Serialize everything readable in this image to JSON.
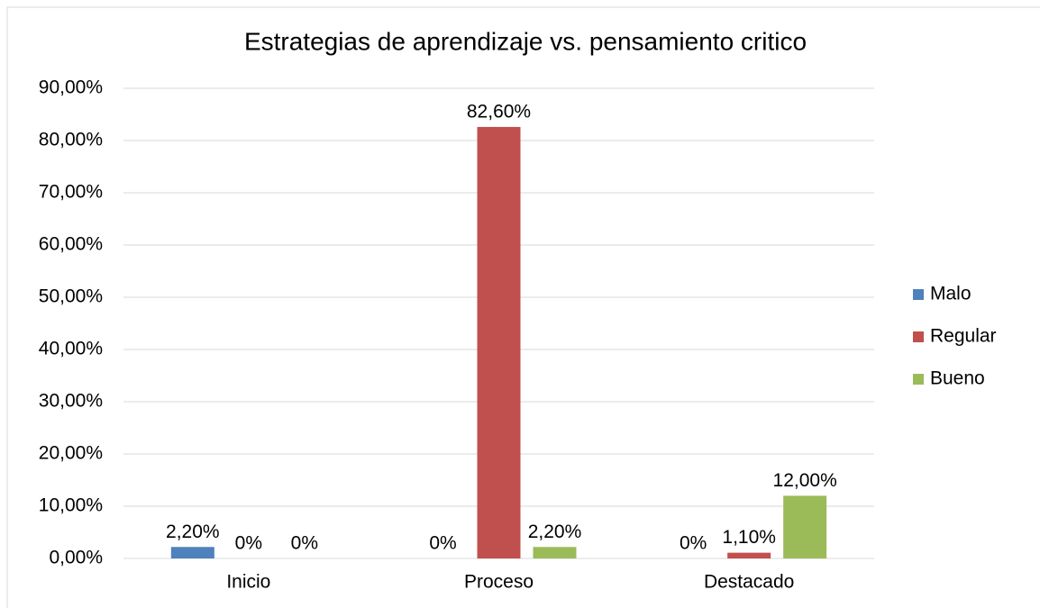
{
  "chart_data": {
    "type": "bar",
    "title": "Estrategias de aprendizaje vs. pensamiento critico",
    "categories": [
      "Inicio",
      "Proceso",
      "Destacado"
    ],
    "series": [
      {
        "name": "Malo",
        "color": "#4f81bd",
        "values": [
          2.2,
          0,
          0
        ],
        "value_labels": [
          "2,20%",
          "0%",
          "0%"
        ]
      },
      {
        "name": "Regular",
        "color": "#c0504d",
        "values": [
          0,
          82.6,
          1.1
        ],
        "value_labels": [
          "0%",
          "82,60%",
          "1,10%"
        ]
      },
      {
        "name": "Bueno",
        "color": "#9bbb59",
        "values": [
          0,
          2.2,
          12.0
        ],
        "value_labels": [
          "0%",
          "2,20%",
          "12,00%"
        ]
      }
    ],
    "ylim": [
      0,
      90
    ],
    "yticks": [
      {
        "value": 0,
        "label": "0,00%"
      },
      {
        "value": 10,
        "label": "10,00%"
      },
      {
        "value": 20,
        "label": "20,00%"
      },
      {
        "value": 30,
        "label": "30,00%"
      },
      {
        "value": 40,
        "label": "40,00%"
      },
      {
        "value": 50,
        "label": "50,00%"
      },
      {
        "value": 60,
        "label": "60,00%"
      },
      {
        "value": 70,
        "label": "70,00%"
      },
      {
        "value": 80,
        "label": "80,00%"
      },
      {
        "value": 90,
        "label": "90,00%"
      }
    ],
    "grid": true,
    "legend": "right"
  }
}
